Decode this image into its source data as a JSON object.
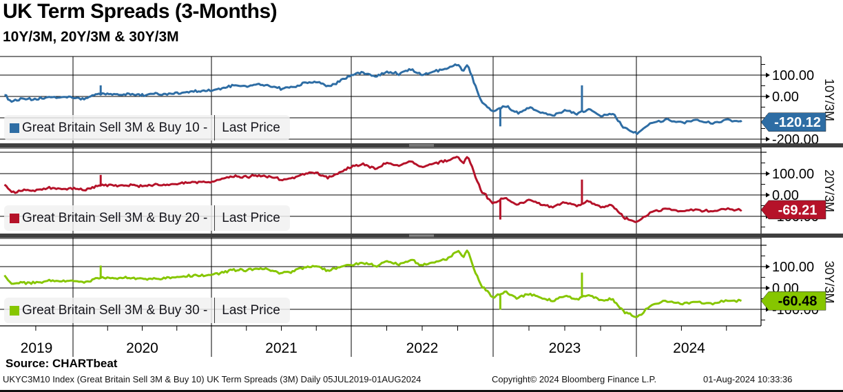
{
  "header": {
    "title": "UK Term Spreads (3-Months)",
    "subtitle": "10Y/3M, 20Y/3M & 30Y/3M"
  },
  "source_line": "Source: CHARTbeat",
  "footer": {
    "left": "UKYC3M10 Index (Great Britain Sell 3M & Buy 10) UK Term Spreads (3M)  Daily 05JUL2019-01AUG2024",
    "center": "Copyright© 2024 Bloomberg Finance L.P.",
    "right": "01-Aug-2024 10:33:36"
  },
  "chart_data": {
    "type": "line",
    "x_axis": {
      "start": "05JUL2019",
      "end": "01AUG2024",
      "frequency": "Daily",
      "year_labels": [
        "2019",
        "2020",
        "2021",
        "2022",
        "2023",
        "2024"
      ]
    },
    "panels": [
      {
        "id": "10y3m",
        "axis_label": "10Y/3M",
        "color": "#2e6da4",
        "tag_text_color": "#ffffff",
        "legend_series": "Great Britain Sell 3M & Buy 10 -",
        "legend_price": "Last Price",
        "last_price": "-120.12",
        "last_price_value": -120.12,
        "y_ticks": [
          {
            "v": 100,
            "label": "100.00"
          },
          {
            "v": 0,
            "label": "0.00"
          },
          {
            "v": -100,
            "label": "-100.00"
          },
          {
            "v": -200,
            "label": "-200.00"
          }
        ],
        "points": [
          [
            2019.54,
            8
          ],
          [
            2019.583,
            -22
          ],
          [
            2019.667,
            -12
          ],
          [
            2019.75,
            -15
          ],
          [
            2019.833,
            -2
          ],
          [
            2019.917,
            -6
          ],
          [
            2020.0,
            -4
          ],
          [
            2020.083,
            -14
          ],
          [
            2020.167,
            10
          ],
          [
            2020.21,
            14
          ],
          [
            2020.25,
            12
          ],
          [
            2020.333,
            8
          ],
          [
            2020.417,
            12
          ],
          [
            2020.5,
            6
          ],
          [
            2020.583,
            13
          ],
          [
            2020.667,
            10
          ],
          [
            2020.75,
            15
          ],
          [
            2020.833,
            22
          ],
          [
            2020.917,
            24
          ],
          [
            2021.0,
            26
          ],
          [
            2021.083,
            40
          ],
          [
            2021.167,
            52
          ],
          [
            2021.25,
            47
          ],
          [
            2021.333,
            57
          ],
          [
            2021.417,
            50
          ],
          [
            2021.5,
            36
          ],
          [
            2021.583,
            44
          ],
          [
            2021.667,
            64
          ],
          [
            2021.75,
            70
          ],
          [
            2021.833,
            46
          ],
          [
            2021.917,
            70
          ],
          [
            2022.0,
            100
          ],
          [
            2022.083,
            112
          ],
          [
            2022.167,
            92
          ],
          [
            2022.25,
            118
          ],
          [
            2022.333,
            105
          ],
          [
            2022.417,
            128
          ],
          [
            2022.5,
            100
          ],
          [
            2022.583,
            118
          ],
          [
            2022.667,
            128
          ],
          [
            2022.75,
            150
          ],
          [
            2022.79,
            118
          ],
          [
            2022.82,
            152
          ],
          [
            2022.87,
            60
          ],
          [
            2022.917,
            -20
          ],
          [
            2022.96,
            -48
          ],
          [
            2023.0,
            -70
          ],
          [
            2023.083,
            -42
          ],
          [
            2023.167,
            -78
          ],
          [
            2023.25,
            -52
          ],
          [
            2023.333,
            -72
          ],
          [
            2023.417,
            -88
          ],
          [
            2023.5,
            -65
          ],
          [
            2023.583,
            -82
          ],
          [
            2023.667,
            -60
          ],
          [
            2023.75,
            -88
          ],
          [
            2023.833,
            -78
          ],
          [
            2023.917,
            -148
          ],
          [
            2024.0,
            -172
          ],
          [
            2024.083,
            -125
          ],
          [
            2024.167,
            -108
          ],
          [
            2024.25,
            -122
          ],
          [
            2024.333,
            -112
          ],
          [
            2024.417,
            -125
          ],
          [
            2024.5,
            -112
          ],
          [
            2024.583,
            -120.12
          ]
        ],
        "events": [
          [
            2020.2,
            52
          ],
          [
            2023.05,
            -140
          ],
          [
            2023.62,
            52
          ]
        ]
      },
      {
        "id": "20y3m",
        "axis_label": "20Y/3M",
        "color": "#b51229",
        "tag_text_color": "#ffffff",
        "legend_series": "Great Britain Sell 3M & Buy 20 -",
        "legend_price": "Last Price",
        "last_price": "-69.21",
        "last_price_value": -69.21,
        "y_ticks": [
          {
            "v": 200,
            "label": ""
          },
          {
            "v": 100,
            "label": "100.00"
          },
          {
            "v": 0,
            "label": "0.00"
          },
          {
            "v": -100,
            "label": "-100.00"
          }
        ],
        "points": [
          [
            2019.54,
            52
          ],
          [
            2019.583,
            13
          ],
          [
            2019.667,
            22
          ],
          [
            2019.75,
            20
          ],
          [
            2019.833,
            32
          ],
          [
            2019.917,
            28
          ],
          [
            2020.0,
            30
          ],
          [
            2020.083,
            22
          ],
          [
            2020.167,
            42
          ],
          [
            2020.25,
            46
          ],
          [
            2020.333,
            42
          ],
          [
            2020.417,
            46
          ],
          [
            2020.5,
            40
          ],
          [
            2020.583,
            47
          ],
          [
            2020.667,
            44
          ],
          [
            2020.75,
            50
          ],
          [
            2020.833,
            58
          ],
          [
            2020.917,
            60
          ],
          [
            2021.0,
            62
          ],
          [
            2021.083,
            76
          ],
          [
            2021.167,
            88
          ],
          [
            2021.25,
            84
          ],
          [
            2021.333,
            92
          ],
          [
            2021.417,
            86
          ],
          [
            2021.5,
            72
          ],
          [
            2021.583,
            80
          ],
          [
            2021.667,
            98
          ],
          [
            2021.75,
            105
          ],
          [
            2021.833,
            82
          ],
          [
            2021.917,
            104
          ],
          [
            2022.0,
            132
          ],
          [
            2022.083,
            144
          ],
          [
            2022.167,
            124
          ],
          [
            2022.25,
            148
          ],
          [
            2022.333,
            136
          ],
          [
            2022.417,
            158
          ],
          [
            2022.5,
            130
          ],
          [
            2022.583,
            148
          ],
          [
            2022.667,
            158
          ],
          [
            2022.75,
            180
          ],
          [
            2022.79,
            148
          ],
          [
            2022.82,
            184
          ],
          [
            2022.87,
            95
          ],
          [
            2022.917,
            20
          ],
          [
            2022.96,
            -10
          ],
          [
            2023.0,
            -38
          ],
          [
            2023.083,
            -12
          ],
          [
            2023.167,
            -48
          ],
          [
            2023.25,
            -22
          ],
          [
            2023.333,
            -42
          ],
          [
            2023.417,
            -58
          ],
          [
            2023.5,
            -35
          ],
          [
            2023.583,
            -52
          ],
          [
            2023.667,
            -30
          ],
          [
            2023.75,
            -58
          ],
          [
            2023.833,
            -48
          ],
          [
            2023.917,
            -108
          ],
          [
            2024.0,
            -128
          ],
          [
            2024.083,
            -80
          ],
          [
            2024.167,
            -62
          ],
          [
            2024.25,
            -75
          ],
          [
            2024.333,
            -68
          ],
          [
            2024.417,
            -80
          ],
          [
            2024.5,
            -65
          ],
          [
            2024.583,
            -69.21
          ]
        ],
        "events": [
          [
            2020.2,
            94
          ],
          [
            2023.05,
            -115
          ],
          [
            2023.62,
            72
          ]
        ]
      },
      {
        "id": "30y3m",
        "axis_label": "30Y/3M",
        "color": "#86c600",
        "tag_text_color": "#000000",
        "legend_series": "Great Britain Sell 3M & Buy 30 -",
        "legend_price": "Last Price",
        "last_price": "-60.48",
        "last_price_value": -60.48,
        "y_ticks": [
          {
            "v": 200,
            "label": ""
          },
          {
            "v": 100,
            "label": "100.00"
          },
          {
            "v": 0,
            "label": "0.00"
          },
          {
            "v": -100,
            "label": "-100.00"
          }
        ],
        "points": [
          [
            2019.54,
            60
          ],
          [
            2019.583,
            15
          ],
          [
            2019.667,
            25
          ],
          [
            2019.75,
            22
          ],
          [
            2019.833,
            35
          ],
          [
            2019.917,
            30
          ],
          [
            2020.0,
            33
          ],
          [
            2020.083,
            25
          ],
          [
            2020.167,
            45
          ],
          [
            2020.25,
            48
          ],
          [
            2020.333,
            44
          ],
          [
            2020.417,
            48
          ],
          [
            2020.5,
            40
          ],
          [
            2020.583,
            47
          ],
          [
            2020.667,
            44
          ],
          [
            2020.75,
            50
          ],
          [
            2020.833,
            57
          ],
          [
            2020.917,
            58
          ],
          [
            2021.0,
            60
          ],
          [
            2021.083,
            73
          ],
          [
            2021.167,
            86
          ],
          [
            2021.25,
            82
          ],
          [
            2021.333,
            90
          ],
          [
            2021.417,
            84
          ],
          [
            2021.5,
            70
          ],
          [
            2021.583,
            77
          ],
          [
            2021.667,
            95
          ],
          [
            2021.75,
            102
          ],
          [
            2021.833,
            80
          ],
          [
            2021.917,
            100
          ],
          [
            2022.0,
            108
          ],
          [
            2022.083,
            120
          ],
          [
            2022.167,
            102
          ],
          [
            2022.25,
            124
          ],
          [
            2022.333,
            112
          ],
          [
            2022.417,
            132
          ],
          [
            2022.5,
            106
          ],
          [
            2022.583,
            122
          ],
          [
            2022.667,
            132
          ],
          [
            2022.75,
            176
          ],
          [
            2022.79,
            140
          ],
          [
            2022.82,
            180
          ],
          [
            2022.87,
            80
          ],
          [
            2022.917,
            10
          ],
          [
            2022.96,
            -18
          ],
          [
            2023.0,
            -45
          ],
          [
            2023.083,
            -15
          ],
          [
            2023.167,
            -50
          ],
          [
            2023.25,
            -25
          ],
          [
            2023.333,
            -45
          ],
          [
            2023.417,
            -60
          ],
          [
            2023.5,
            -38
          ],
          [
            2023.583,
            -55
          ],
          [
            2023.667,
            -32
          ],
          [
            2023.75,
            -60
          ],
          [
            2023.833,
            -52
          ],
          [
            2023.917,
            -112
          ],
          [
            2024.0,
            -138
          ],
          [
            2024.083,
            -82
          ],
          [
            2024.167,
            -60
          ],
          [
            2024.25,
            -72
          ],
          [
            2024.333,
            -64
          ],
          [
            2024.417,
            -76
          ],
          [
            2024.5,
            -60
          ],
          [
            2024.583,
            -60.48
          ]
        ],
        "events": [
          [
            2020.2,
            105
          ],
          [
            2023.05,
            -102
          ],
          [
            2023.62,
            72
          ]
        ]
      }
    ]
  }
}
